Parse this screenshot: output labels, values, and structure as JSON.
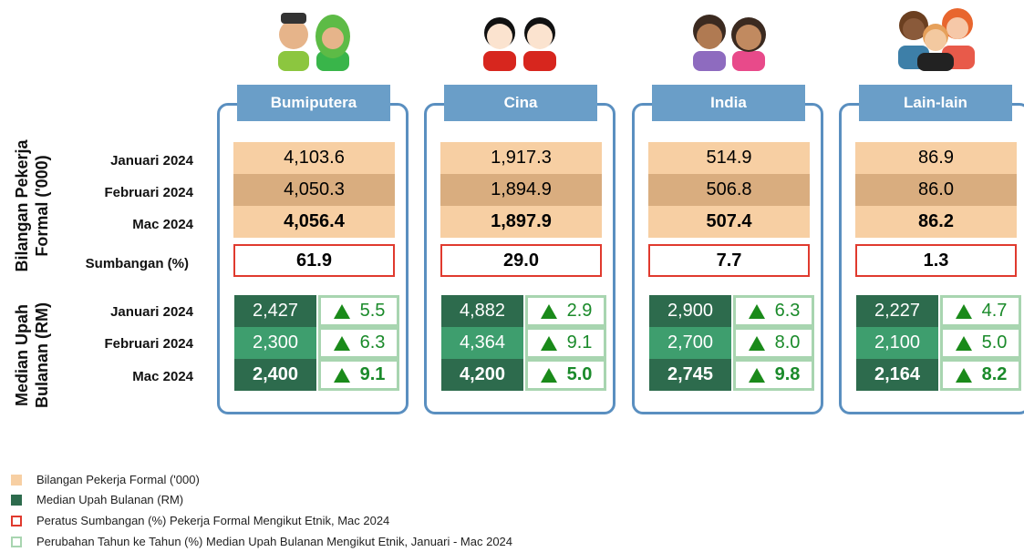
{
  "row_labels": {
    "group1": "Bilangan Pekerja Formal ('000)",
    "group2": "Median Upah Bulanan (RM)",
    "months1": [
      "Januari 2024",
      "Februari 2024",
      "Mac 2024"
    ],
    "share": "Sumbangan (%)",
    "months2": [
      "Januari 2024",
      "Februari 2024",
      "Mac 2024"
    ]
  },
  "columns": [
    {
      "name": "Bumiputera",
      "workers": [
        "4,103.6",
        "4,050.3",
        "4,056.4"
      ],
      "share": "61.9",
      "wage": [
        "2,427",
        "2,300",
        "2,400"
      ],
      "change": [
        "5.5",
        "6.3",
        "9.1"
      ]
    },
    {
      "name": "Cina",
      "workers": [
        "1,917.3",
        "1,894.9",
        "1,897.9"
      ],
      "share": "29.0",
      "wage": [
        "4,882",
        "4,364",
        "4,200"
      ],
      "change": [
        "2.9",
        "9.1",
        "5.0"
      ]
    },
    {
      "name": "India",
      "workers": [
        "514.9",
        "506.8",
        "507.4"
      ],
      "share": "7.7",
      "wage": [
        "2,900",
        "2,700",
        "2,745"
      ],
      "change": [
        "6.3",
        "8.0",
        "9.8"
      ]
    },
    {
      "name": "Lain-lain",
      "workers": [
        "86.9",
        "86.0",
        "86.2"
      ],
      "share": "1.3",
      "wage": [
        "2,227",
        "2,100",
        "2,164"
      ],
      "change": [
        "4.7",
        "5.0",
        "8.2"
      ]
    }
  ],
  "legend": [
    "Bilangan Pekerja Formal ('000)",
    "Median Upah Bulanan (RM)",
    "Peratus Sumbangan (%) Pekerja Formal Mengikut Etnik, Mac 2024",
    "Perubahan Tahun ke Tahun (%) Median Upah Bulanan Mengikut Etnik, Januari - Mac 2024"
  ]
}
